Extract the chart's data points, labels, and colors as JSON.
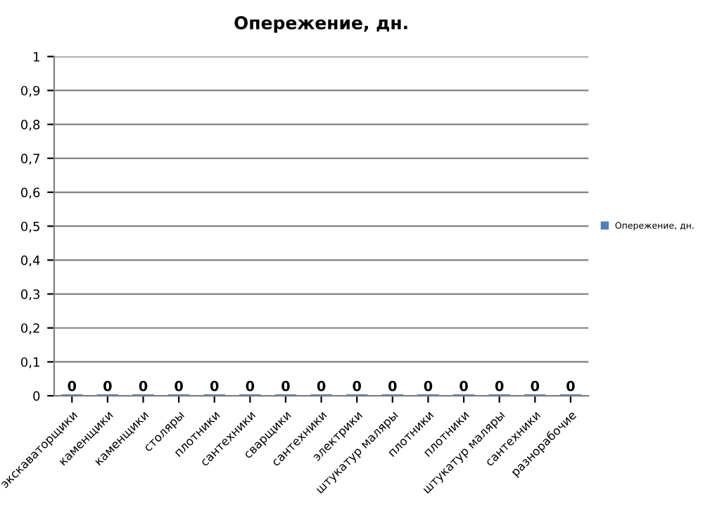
{
  "chart_data": {
    "type": "bar",
    "title": "Опережение, дн.",
    "categories": [
      "экскаваторщики",
      "каменщики",
      "каменщики",
      "столяры",
      "плотники",
      "сантехники",
      "сварщики",
      "сантехники",
      "электрики",
      "штукатур маляры",
      "плотники",
      "плотники",
      "штукатур маляры",
      "сантехники",
      "разнорабочие"
    ],
    "series": [
      {
        "name": "Опережение, дн.",
        "color": "#4f81bd",
        "values": [
          0,
          0,
          0,
          0,
          0,
          0,
          0,
          0,
          0,
          0,
          0,
          0,
          0,
          0,
          0
        ]
      }
    ],
    "ylim": [
      0,
      1
    ],
    "yticks": [
      {
        "value": 0,
        "label": "0"
      },
      {
        "value": 0.1,
        "label": "0,1"
      },
      {
        "value": 0.2,
        "label": "0,2"
      },
      {
        "value": 0.3,
        "label": "0,3"
      },
      {
        "value": 0.4,
        "label": "0,4"
      },
      {
        "value": 0.5,
        "label": "0,5"
      },
      {
        "value": 0.6,
        "label": "0,6"
      },
      {
        "value": 0.7,
        "label": "0,7"
      },
      {
        "value": 0.8,
        "label": "0,8"
      },
      {
        "value": 0.9,
        "label": "0,9"
      },
      {
        "value": 1,
        "label": "1"
      }
    ],
    "grid": "y",
    "legend": "right",
    "data_labels": true
  }
}
